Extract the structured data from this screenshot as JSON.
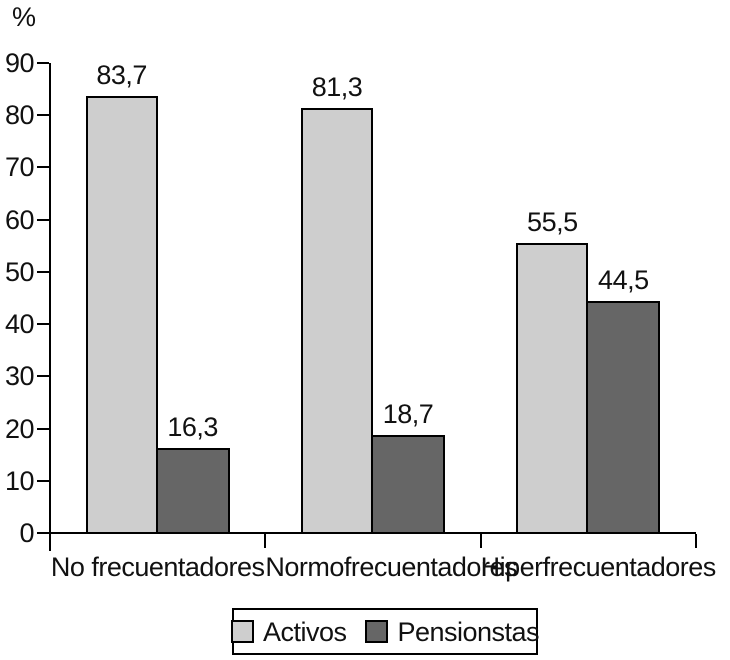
{
  "figure": {
    "background": "#ffffff",
    "axis_color": "#000000",
    "text_color": "#111111"
  },
  "chart_data": {
    "type": "bar",
    "title": "",
    "xlabel": "",
    "ylabel": "%",
    "categories": [
      "No frecuentadores",
      "Normofrecuentadores",
      "Hiperfrecuentadores"
    ],
    "series": [
      {
        "name": "Activos",
        "color": "#cecece",
        "values": [
          83.7,
          81.3,
          55.5
        ],
        "labels": [
          "83,7",
          "81,3",
          "55,5"
        ]
      },
      {
        "name": "Pensionstas",
        "color": "#666666",
        "values": [
          16.3,
          18.7,
          44.5
        ],
        "labels": [
          "16,3",
          "18,7",
          "44,5"
        ]
      }
    ],
    "ylim": [
      0,
      90
    ],
    "yticks": [
      0,
      10,
      20,
      30,
      40,
      50,
      60,
      70,
      80,
      90
    ],
    "ytick_labels": [
      "0",
      "10",
      "20",
      "30",
      "40",
      "50",
      "60",
      "70",
      "80",
      "90"
    ],
    "grid": false,
    "legend_position": "bottom",
    "bar_border_color": "#000000"
  }
}
